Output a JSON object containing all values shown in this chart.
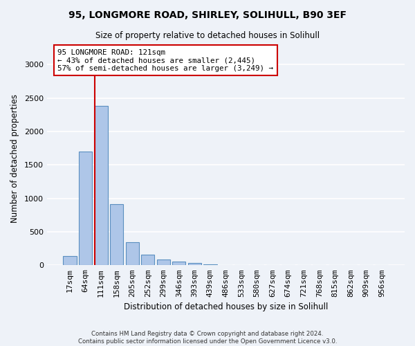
{
  "title1": "95, LONGMORE ROAD, SHIRLEY, SOLIHULL, B90 3EF",
  "title2": "Size of property relative to detached houses in Solihull",
  "xlabel": "Distribution of detached houses by size in Solihull",
  "ylabel": "Number of detached properties",
  "footer1": "Contains HM Land Registry data © Crown copyright and database right 2024.",
  "footer2": "Contains public sector information licensed under the Open Government Licence v3.0.",
  "annotation_title": "95 LONGMORE ROAD: 121sqm",
  "annotation_line1": "← 43% of detached houses are smaller (2,445)",
  "annotation_line2": "57% of semi-detached houses are larger (3,249) →",
  "bar_values": [
    140,
    1700,
    2380,
    910,
    340,
    155,
    85,
    55,
    30,
    15,
    5,
    2,
    0,
    0,
    0,
    0,
    0,
    0,
    0,
    0,
    0
  ],
  "categories": [
    "17sqm",
    "64sqm",
    "111sqm",
    "158sqm",
    "205sqm",
    "252sqm",
    "299sqm",
    "346sqm",
    "393sqm",
    "439sqm",
    "486sqm",
    "533sqm",
    "580sqm",
    "627sqm",
    "674sqm",
    "721sqm",
    "768sqm",
    "815sqm",
    "862sqm",
    "909sqm",
    "956sqm"
  ],
  "bar_color": "#aec6e8",
  "bar_edge_color": "#5a8fc0",
  "vline_color": "#cc0000",
  "annotation_box_color": "#ffffff",
  "annotation_box_edge": "#cc0000",
  "ylim": [
    0,
    3200
  ],
  "yticks": [
    0,
    500,
    1000,
    1500,
    2000,
    2500,
    3000
  ],
  "background_color": "#eef2f8",
  "grid_color": "#ffffff",
  "fig_width": 6.0,
  "fig_height": 5.0,
  "dpi": 100
}
